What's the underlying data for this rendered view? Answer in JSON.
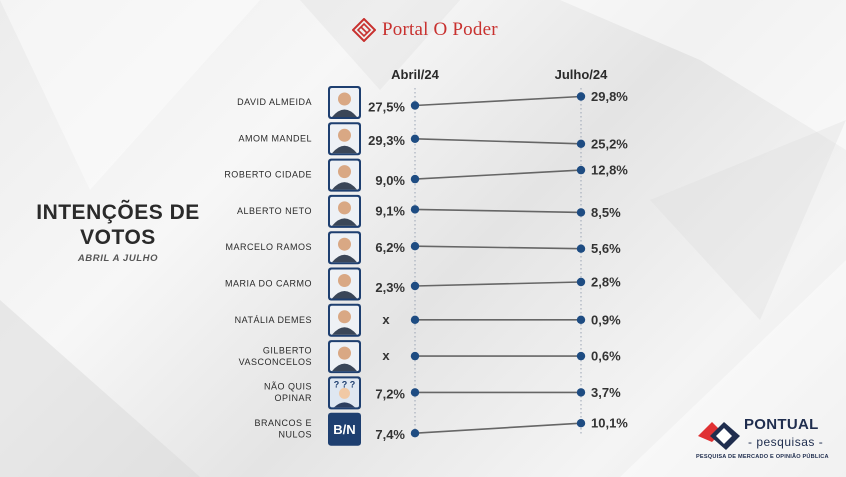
{
  "brand": {
    "name": "Portal O Poder",
    "logo_icon": "portal-o-poder-diamond-icon",
    "color": "#c8312f"
  },
  "title": {
    "main": "INTENÇÕES DE\nVOTOS",
    "sub": "ABRIL A JULHO"
  },
  "footer_logo": {
    "name": "PONTUAL",
    "sub": "- pesquisas -",
    "tagline": "PESQUISA DE MERCADO E OPINIÃO PÚBLICA",
    "icon": "pontual-chevron-icon",
    "colors": {
      "red": "#e03133",
      "navy": "#1f2d4e"
    }
  },
  "chart_data": {
    "type": "line",
    "subtype": "slope",
    "periods": [
      "Abril/24",
      "Julho/24"
    ],
    "value_format": "percent",
    "missing_marker": "x",
    "colors": {
      "line": "#666666",
      "dot": "#1e4c82",
      "label": "#333333",
      "period_axis": "#9aa4b4"
    },
    "categories": [
      {
        "name": "DAVID ALMEIDA",
        "avatar_icon": "person-photo-icon",
        "values": [
          27.5,
          29.8
        ],
        "labels": [
          "27,5%",
          "29,8%"
        ]
      },
      {
        "name": "AMOM MANDEL",
        "avatar_icon": "person-photo-icon",
        "values": [
          29.3,
          25.2
        ],
        "labels": [
          "29,3%",
          "25,2%"
        ]
      },
      {
        "name": "ROBERTO CIDADE",
        "avatar_icon": "person-photo-icon",
        "values": [
          9.0,
          12.8
        ],
        "labels": [
          "9,0%",
          "12,8%"
        ]
      },
      {
        "name": "ALBERTO NETO",
        "avatar_icon": "person-photo-icon",
        "values": [
          9.1,
          8.5
        ],
        "labels": [
          "9,1%",
          "8,5%"
        ]
      },
      {
        "name": "MARCELO RAMOS",
        "avatar_icon": "person-photo-icon",
        "values": [
          6.2,
          5.6
        ],
        "labels": [
          "6,2%",
          "5,6%"
        ]
      },
      {
        "name": "MARIA DO CARMO",
        "avatar_icon": "person-photo-icon",
        "values": [
          2.3,
          2.8
        ],
        "labels": [
          "2,3%",
          "2,8%"
        ]
      },
      {
        "name": "NATÁLIA DEMES",
        "avatar_icon": "person-photo-icon",
        "values": [
          null,
          0.9
        ],
        "labels": [
          "x",
          "0,9%"
        ]
      },
      {
        "name": "GILBERTO\nVASCONCELOS",
        "avatar_icon": "person-photo-icon",
        "values": [
          null,
          0.6
        ],
        "labels": [
          "x",
          "0,6%"
        ]
      },
      {
        "name": "NÃO QUIS\nOPINAR",
        "avatar_icon": "question-person-icon",
        "values": [
          7.2,
          3.7
        ],
        "labels": [
          "7,2%",
          "3,7%"
        ]
      },
      {
        "name": "BRANCOS E\nNULOS",
        "avatar_icon": "bn-badge-icon",
        "avatar_text": "B/N",
        "values": [
          7.4,
          10.1
        ],
        "labels": [
          "7,4%",
          "10,1%"
        ]
      }
    ]
  }
}
